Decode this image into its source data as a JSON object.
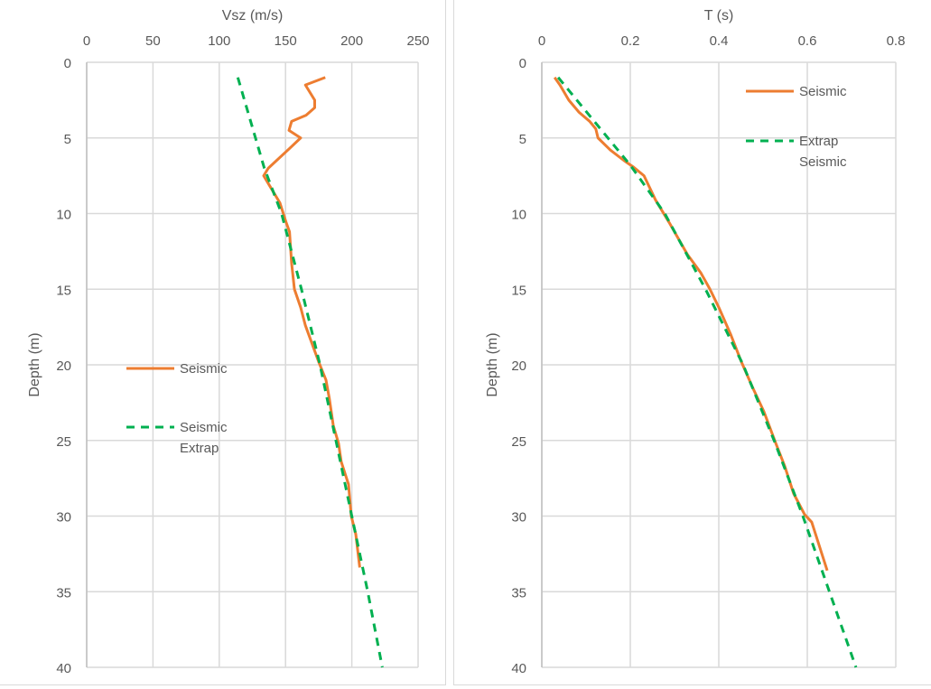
{
  "chart_data": [
    {
      "type": "line",
      "xlabel": "Vsz (m/s)",
      "ylabel": "Depth (m)",
      "xlim": [
        0,
        250
      ],
      "ylim": [
        0,
        40
      ],
      "y_inverted": true,
      "x_axis_position": "top",
      "xticks": [
        0,
        50,
        100,
        150,
        200,
        250
      ],
      "yticks": [
        0,
        5,
        10,
        15,
        20,
        25,
        30,
        35,
        40
      ],
      "grid": true,
      "legend": "left",
      "series": [
        {
          "name": "Seismic",
          "color": "#ed7d31",
          "style": "solid",
          "points": [
            [
              180,
              1
            ],
            [
              165,
              1.5
            ],
            [
              172,
              2.5
            ],
            [
              172,
              3
            ],
            [
              165.5,
              3.5
            ],
            [
              154.6,
              3.9
            ],
            [
              152.6,
              4.5
            ],
            [
              161.4,
              5
            ],
            [
              153,
              5.7
            ],
            [
              137,
              7
            ],
            [
              133.5,
              7.5
            ],
            [
              137.6,
              8.1
            ],
            [
              145.8,
              9.3
            ],
            [
              150.5,
              10.6
            ],
            [
              153,
              11.2
            ],
            [
              154.6,
              13.3
            ],
            [
              156.7,
              15
            ],
            [
              161.4,
              16.2
            ],
            [
              165,
              17.4
            ],
            [
              170,
              18.6
            ],
            [
              175,
              19.8
            ],
            [
              180.5,
              21
            ],
            [
              183,
              22.2
            ],
            [
              186,
              24
            ],
            [
              190,
              25.2
            ],
            [
              192,
              26.4
            ],
            [
              197.5,
              27.9
            ],
            [
              199.6,
              30
            ],
            [
              203,
              31.2
            ],
            [
              206,
              33.4
            ]
          ]
        },
        {
          "name": "Seismic Extrap",
          "color": "#00b050",
          "style": "dashed",
          "points": [
            [
              114,
              1
            ],
            [
              134,
              7
            ],
            [
              147,
              10
            ],
            [
              162,
              15
            ],
            [
              176,
              20
            ],
            [
              188,
              25
            ],
            [
              200,
              30
            ],
            [
              212,
              35
            ],
            [
              223,
              40
            ]
          ]
        }
      ]
    },
    {
      "type": "line",
      "xlabel": "T (s)",
      "ylabel": "Depth (m)",
      "xlim": [
        0,
        0.8
      ],
      "ylim": [
        0,
        40
      ],
      "y_inverted": true,
      "x_axis_position": "top",
      "xticks": [
        0,
        0.2,
        0.4,
        0.6,
        0.8
      ],
      "yticks": [
        0,
        5,
        10,
        15,
        20,
        25,
        30,
        35,
        40
      ],
      "grid": true,
      "legend": "top-right",
      "series": [
        {
          "name": "Seismic",
          "color": "#ed7d31",
          "style": "solid",
          "points": [
            [
              0.029,
              1
            ],
            [
              0.041,
              1.5
            ],
            [
              0.061,
              2.5
            ],
            [
              0.084,
              3.3
            ],
            [
              0.108,
              3.9
            ],
            [
              0.122,
              4.4
            ],
            [
              0.127,
              5
            ],
            [
              0.155,
              5.8
            ],
            [
              0.186,
              6.5
            ],
            [
              0.206,
              6.9
            ],
            [
              0.231,
              7.5
            ],
            [
              0.257,
              9.1
            ],
            [
              0.288,
              10.6
            ],
            [
              0.329,
              12.7
            ],
            [
              0.359,
              13.9
            ],
            [
              0.38,
              15
            ],
            [
              0.4,
              16.2
            ],
            [
              0.427,
              18
            ],
            [
              0.451,
              19.8
            ],
            [
              0.478,
              21.6
            ],
            [
              0.502,
              23.1
            ],
            [
              0.529,
              25.2
            ],
            [
              0.549,
              26.7
            ],
            [
              0.569,
              28.5
            ],
            [
              0.594,
              29.9
            ],
            [
              0.61,
              30.4
            ],
            [
              0.645,
              33.6
            ]
          ]
        },
        {
          "name": "Extrap Seismic",
          "color": "#00b050",
          "style": "dashed",
          "points": [
            [
              0.037,
              1
            ],
            [
              0.2,
              6.8
            ],
            [
              0.278,
              10
            ],
            [
              0.37,
              15
            ],
            [
              0.455,
              20
            ],
            [
              0.525,
              25
            ],
            [
              0.59,
              30
            ],
            [
              0.65,
              35
            ],
            [
              0.71,
              40
            ]
          ]
        }
      ]
    }
  ]
}
